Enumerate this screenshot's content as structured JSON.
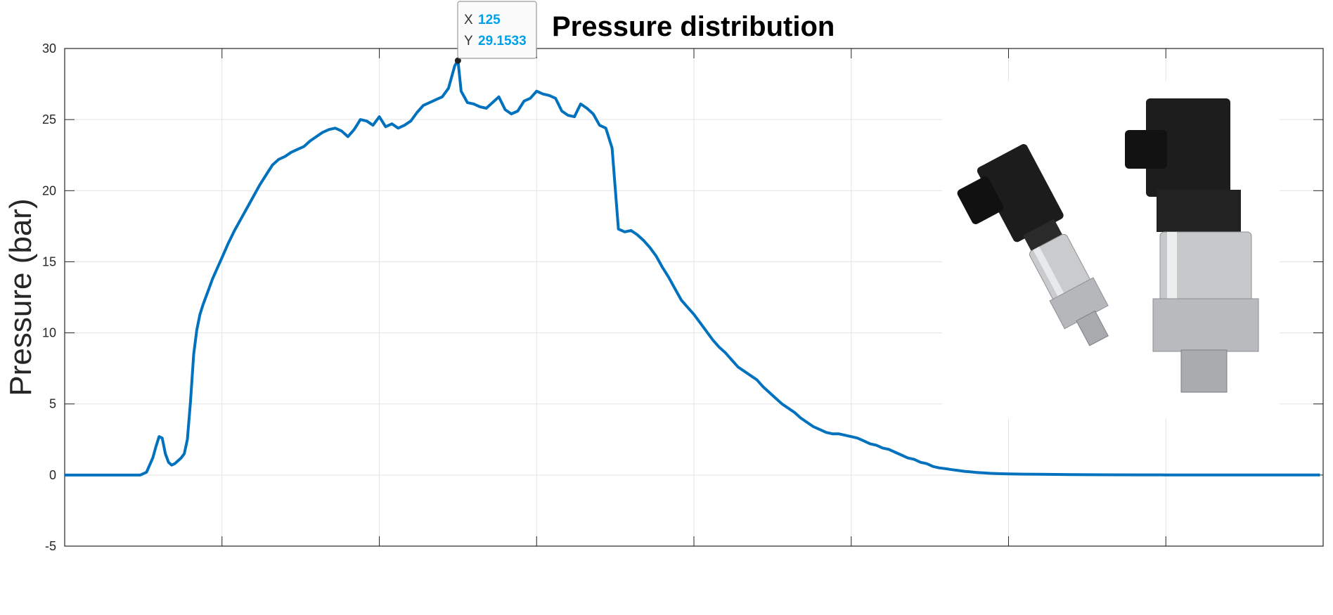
{
  "chart_data": {
    "type": "line",
    "title": "Pressure distribution",
    "xlabel": "",
    "ylabel": "Pressure (bar)",
    "xlim": [
      0,
      400
    ],
    "ylim": [
      -5,
      30
    ],
    "yticks": [
      -5,
      0,
      5,
      10,
      15,
      20,
      25,
      30
    ],
    "grid": true,
    "line_color": "#0072BD",
    "series": [
      {
        "x": [
          0,
          5,
          10,
          15,
          20,
          22,
          24,
          26,
          28,
          29,
          30,
          31,
          32,
          33,
          34,
          35,
          36,
          37,
          38,
          39,
          40,
          41,
          42,
          43,
          44,
          45,
          46,
          47,
          48,
          50,
          52,
          54,
          56,
          58,
          60,
          62,
          64,
          66,
          68,
          70,
          72,
          74,
          76,
          78,
          80,
          82,
          84,
          86,
          88,
          90,
          92,
          94,
          96,
          98,
          100,
          102,
          104,
          106,
          108,
          110,
          112,
          114,
          116,
          118,
          120,
          122,
          124,
          125,
          126,
          128,
          130,
          132,
          134,
          136,
          138,
          140,
          142,
          144,
          146,
          148,
          150,
          152,
          154,
          156,
          158,
          160,
          162,
          164,
          166,
          168,
          170,
          172,
          174,
          176,
          178,
          180,
          182,
          184,
          186,
          188,
          190,
          192,
          194,
          196,
          198,
          200,
          202,
          204,
          206,
          208,
          210,
          212,
          214,
          216,
          218,
          220,
          222,
          224,
          226,
          228,
          230,
          232,
          234,
          236,
          238,
          240,
          242,
          244,
          246,
          248,
          250,
          252,
          254,
          256,
          258,
          260,
          262,
          264,
          266,
          268,
          270,
          272,
          274,
          276,
          278,
          280,
          282,
          284,
          286,
          288,
          290,
          292,
          294,
          296,
          298,
          300,
          305,
          310,
          315,
          320,
          330,
          340,
          350,
          360,
          370,
          380,
          390,
          399
        ],
        "y": [
          0,
          0,
          0,
          0,
          0,
          0,
          0,
          0.2,
          1.2,
          2.0,
          2.7,
          2.6,
          1.5,
          0.9,
          0.7,
          0.8,
          1.0,
          1.2,
          1.5,
          2.5,
          5.2,
          8.5,
          10.2,
          11.3,
          12.0,
          12.6,
          13.2,
          13.8,
          14.3,
          15.3,
          16.3,
          17.2,
          18.0,
          18.8,
          19.6,
          20.4,
          21.1,
          21.8,
          22.2,
          22.4,
          22.7,
          22.9,
          23.1,
          23.5,
          23.8,
          24.1,
          24.3,
          24.4,
          24.2,
          23.8,
          24.3,
          25.0,
          24.9,
          24.6,
          25.2,
          24.5,
          24.7,
          24.4,
          24.6,
          24.9,
          25.5,
          26.0,
          26.2,
          26.4,
          26.6,
          27.2,
          28.8,
          29.15,
          27.0,
          26.2,
          26.1,
          25.9,
          25.8,
          26.2,
          26.6,
          25.7,
          25.4,
          25.6,
          26.3,
          26.5,
          27.0,
          26.8,
          26.7,
          26.5,
          25.6,
          25.3,
          25.2,
          26.1,
          25.8,
          25.4,
          24.6,
          24.4,
          23.0,
          17.3,
          17.1,
          17.2,
          16.9,
          16.5,
          16.0,
          15.4,
          14.6,
          13.9,
          13.1,
          12.3,
          11.8,
          11.3,
          10.7,
          10.1,
          9.5,
          9.0,
          8.6,
          8.1,
          7.6,
          7.3,
          7.0,
          6.7,
          6.2,
          5.8,
          5.4,
          5.0,
          4.7,
          4.4,
          4.0,
          3.7,
          3.4,
          3.2,
          3.0,
          2.9,
          2.9,
          2.8,
          2.7,
          2.6,
          2.4,
          2.2,
          2.1,
          1.9,
          1.8,
          1.6,
          1.4,
          1.2,
          1.1,
          0.9,
          0.8,
          0.6,
          0.5,
          0.45,
          0.38,
          0.32,
          0.26,
          0.22,
          0.18,
          0.15,
          0.12,
          0.1,
          0.09,
          0.08,
          0.06,
          0.05,
          0.04,
          0.03,
          0.02,
          0.015,
          0.01,
          0.01,
          0.01,
          0.01,
          0.01,
          0.01
        ]
      }
    ],
    "datatip": {
      "x_key": "X",
      "x_value": "125",
      "y_key": "Y",
      "y_value": "29.1533",
      "point": [
        125,
        29.15
      ]
    }
  },
  "image": {
    "description_icon": "pressure-sensor-photo"
  },
  "colors": {
    "line": "#0072BD",
    "grid": "#e3e3e3",
    "datatip_value": "#00A0E8"
  }
}
